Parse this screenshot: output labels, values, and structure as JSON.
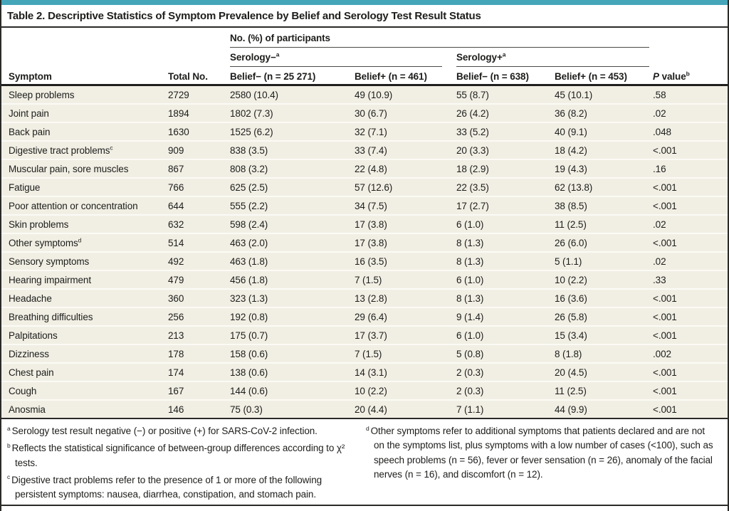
{
  "colors": {
    "accent": "#45a6ba",
    "row_background": "#f1efe4",
    "rule": "#2a2a28"
  },
  "title": "Table 2. Descriptive Statistics of Symptom Prevalence by Belief and Serology Test Result Status",
  "table": {
    "group_header": "No. (%) of participants",
    "serology_negative_label": "Serology−",
    "serology_negative_footnote_marker": "a",
    "serology_positive_label": "Serology+",
    "serology_positive_footnote_marker": "a",
    "columns": {
      "symptom": "Symptom",
      "total": "Total No.",
      "sero_neg_belief_neg": "Belief− (n = 25 271)",
      "sero_neg_belief_pos": "Belief+ (n = 461)",
      "sero_pos_belief_neg": "Belief− (n = 638)",
      "sero_pos_belief_pos": "Belief+ (n = 453)",
      "p_label_italic": "P",
      "p_label_rest": " value",
      "p_value_footnote_marker": "b"
    },
    "rows": [
      {
        "symptom": "Sleep problems",
        "footnote": "",
        "total": "2729",
        "cells": [
          "2580 (10.4)",
          "49 (10.9)",
          "55 (8.7)",
          "45 (10.1)"
        ],
        "p": ".58"
      },
      {
        "symptom": "Joint pain",
        "footnote": "",
        "total": "1894",
        "cells": [
          "1802 (7.3)",
          "30 (6.7)",
          "26 (4.2)",
          "36 (8.2)"
        ],
        "p": ".02"
      },
      {
        "symptom": "Back pain",
        "footnote": "",
        "total": "1630",
        "cells": [
          "1525 (6.2)",
          "32 (7.1)",
          "33 (5.2)",
          "40 (9.1)"
        ],
        "p": ".048"
      },
      {
        "symptom": "Digestive tract problems",
        "footnote": "c",
        "total": "909",
        "cells": [
          "838 (3.5)",
          "33 (7.4)",
          "20 (3.3)",
          "18 (4.2)"
        ],
        "p": "<.001"
      },
      {
        "symptom": "Muscular pain, sore muscles",
        "footnote": "",
        "total": "867",
        "cells": [
          "808 (3.2)",
          "22 (4.8)",
          "18 (2.9)",
          "19 (4.3)"
        ],
        "p": ".16"
      },
      {
        "symptom": "Fatigue",
        "footnote": "",
        "total": "766",
        "cells": [
          "625 (2.5)",
          "57 (12.6)",
          "22 (3.5)",
          "62 (13.8)"
        ],
        "p": "<.001"
      },
      {
        "symptom": "Poor attention or concentration",
        "footnote": "",
        "total": "644",
        "cells": [
          "555 (2.2)",
          "34 (7.5)",
          "17 (2.7)",
          "38 (8.5)"
        ],
        "p": "<.001"
      },
      {
        "symptom": "Skin problems",
        "footnote": "",
        "total": "632",
        "cells": [
          "598 (2.4)",
          "17 (3.8)",
          "6 (1.0)",
          "11 (2.5)"
        ],
        "p": ".02"
      },
      {
        "symptom": "Other symptoms",
        "footnote": "d",
        "total": "514",
        "cells": [
          "463 (2.0)",
          "17 (3.8)",
          "8 (1.3)",
          "26 (6.0)"
        ],
        "p": "<.001"
      },
      {
        "symptom": "Sensory symptoms",
        "footnote": "",
        "total": "492",
        "cells": [
          "463 (1.8)",
          "16 (3.5)",
          "8 (1.3)",
          "5 (1.1)"
        ],
        "p": ".02"
      },
      {
        "symptom": "Hearing impairment",
        "footnote": "",
        "total": "479",
        "cells": [
          "456 (1.8)",
          "7 (1.5)",
          "6 (1.0)",
          "10 (2.2)"
        ],
        "p": ".33"
      },
      {
        "symptom": "Headache",
        "footnote": "",
        "total": "360",
        "cells": [
          "323 (1.3)",
          "13 (2.8)",
          "8 (1.3)",
          "16 (3.6)"
        ],
        "p": "<.001"
      },
      {
        "symptom": "Breathing difficulties",
        "footnote": "",
        "total": "256",
        "cells": [
          "192 (0.8)",
          "29 (6.4)",
          "9 (1.4)",
          "26 (5.8)"
        ],
        "p": "<.001"
      },
      {
        "symptom": "Palpitations",
        "footnote": "",
        "total": "213",
        "cells": [
          "175 (0.7)",
          "17 (3.7)",
          "6 (1.0)",
          "15 (3.4)"
        ],
        "p": "<.001"
      },
      {
        "symptom": "Dizziness",
        "footnote": "",
        "total": "178",
        "cells": [
          "158 (0.6)",
          "7 (1.5)",
          "5 (0.8)",
          "8 (1.8)"
        ],
        "p": ".002"
      },
      {
        "symptom": "Chest pain",
        "footnote": "",
        "total": "174",
        "cells": [
          "138 (0.6)",
          "14 (3.1)",
          "2 (0.3)",
          "20 (4.5)"
        ],
        "p": "<.001"
      },
      {
        "symptom": "Cough",
        "footnote": "",
        "total": "167",
        "cells": [
          "144 (0.6)",
          "10 (2.2)",
          "2 (0.3)",
          "11 (2.5)"
        ],
        "p": "<.001"
      },
      {
        "symptom": "Anosmia",
        "footnote": "",
        "total": "146",
        "cells": [
          "75 (0.3)",
          "20 (4.4)",
          "7 (1.1)",
          "44 (9.9)"
        ],
        "p": "<.001"
      }
    ]
  },
  "footnotes": {
    "left": [
      {
        "marker": "a",
        "text": "Serology test result negative (−) or positive (+) for SARS-CoV-2 infection."
      },
      {
        "marker": "b",
        "text": "Reflects the statistical significance of between-group differences according to χ² tests."
      },
      {
        "marker": "c",
        "text": "Digestive tract problems refer to the presence of 1 or more of the following persistent symptoms: nausea, diarrhea, constipation, and stomach pain."
      }
    ],
    "right": [
      {
        "marker": "d",
        "text": "Other symptoms refer to additional symptoms that patients declared and are not on the symptoms list, plus symptoms with a low number of cases (<100), such as speech problems (n = 56), fever or fever sensation (n = 26), anomaly of the facial nerves (n = 16), and discomfort (n = 12)."
      }
    ]
  }
}
